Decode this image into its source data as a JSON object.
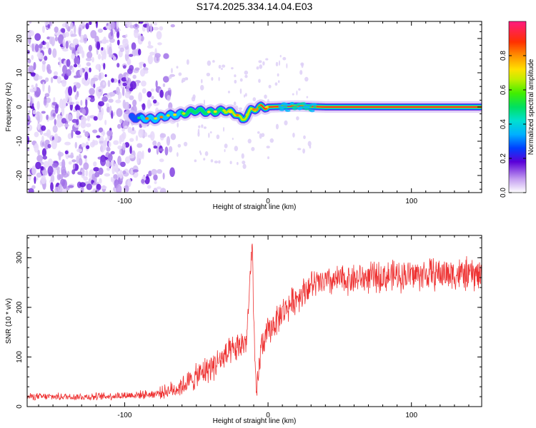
{
  "figure_title": "S174.2025.334.14.04.E03",
  "colors": {
    "snr_line": "#ee3333",
    "axes": "#000000",
    "background": "#ffffff"
  },
  "chart_data": [
    {
      "type": "heatmap",
      "title": "S174.2025.334.14.04.E03",
      "xlabel": "Height of straight line (km)",
      "ylabel": "Frequency (Hz)",
      "xlim": [
        -168,
        149
      ],
      "ylim": [
        -25,
        25
      ],
      "x_ticks": [
        -100,
        0,
        100
      ],
      "x_tick_labels": [
        "-100",
        "0",
        "100"
      ],
      "y_ticks": [
        -20,
        -10,
        0,
        10,
        20
      ],
      "y_tick_labels": [
        "-20",
        "-10",
        "0",
        "10",
        "20"
      ],
      "colorbar": {
        "label": "Normalized spectral amplitude",
        "range": [
          0,
          1
        ],
        "ticks": [
          0,
          0.2,
          0.4,
          0.6,
          0.8
        ],
        "tick_labels": [
          "0.0",
          "0.2",
          "0.4",
          "0.6",
          "0.8"
        ]
      },
      "description_of_ridge": {
        "noise_region_x": [
          -168,
          -70
        ],
        "ridge_x": [
          -95,
          149
        ],
        "ridge_frequency_points": [
          [
            -95,
            -3
          ],
          [
            -80,
            -3.5
          ],
          [
            -70,
            -2.5
          ],
          [
            -60,
            -2
          ],
          [
            -50,
            -1
          ],
          [
            -40,
            -1.5
          ],
          [
            -30,
            -1
          ],
          [
            -22,
            -2
          ],
          [
            -18,
            -4
          ],
          [
            -12,
            -1
          ],
          [
            -5,
            0
          ],
          [
            0,
            0
          ],
          [
            20,
            0.3
          ],
          [
            40,
            0
          ],
          [
            149,
            0
          ]
        ]
      }
    },
    {
      "type": "line",
      "xlabel": "Height of straight line (km)",
      "ylabel": "SNR (10 * v/v)",
      "xlim": [
        -168,
        149
      ],
      "ylim": [
        0,
        345
      ],
      "x_ticks": [
        -100,
        0,
        100
      ],
      "x_tick_labels": [
        "-100",
        "0",
        "100"
      ],
      "y_ticks": [
        0,
        100,
        200,
        300
      ],
      "y_tick_labels": [
        "0",
        "100",
        "200",
        "300"
      ],
      "series": [
        {
          "name": "SNR",
          "trend_points": [
            [
              -168,
              20
            ],
            [
              -120,
              20
            ],
            [
              -80,
              25
            ],
            [
              -65,
              35
            ],
            [
              -55,
              50
            ],
            [
              -40,
              80
            ],
            [
              -30,
              100
            ],
            [
              -20,
              120
            ],
            [
              -15,
              135
            ],
            [
              -11,
              325
            ],
            [
              -9,
              60
            ],
            [
              -8,
              20
            ],
            [
              -5,
              120
            ],
            [
              0,
              150
            ],
            [
              10,
              190
            ],
            [
              20,
              220
            ],
            [
              30,
              245
            ],
            [
              50,
              255
            ],
            [
              80,
              262
            ],
            [
              100,
              265
            ],
            [
              120,
              268
            ],
            [
              149,
              265
            ]
          ],
          "noise_amplitude_points": [
            [
              -168,
              8
            ],
            [
              -80,
              10
            ],
            [
              -60,
              25
            ],
            [
              -40,
              35
            ],
            [
              0,
              35
            ],
            [
              40,
              35
            ],
            [
              149,
              40
            ]
          ]
        }
      ]
    }
  ]
}
